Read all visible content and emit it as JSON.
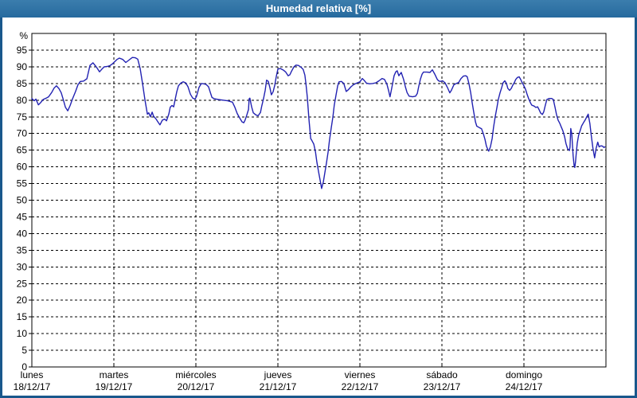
{
  "window": {
    "title": "Humedad relativa [%]"
  },
  "colors": {
    "frame": "#19588C",
    "title_bar_top": "#3B7DAD",
    "title_bar_bottom": "#266A9E",
    "title_text": "#FFFFFF",
    "plot_background": "#FFFFFF",
    "grid_line": "#000000",
    "axis_text": "#000000",
    "series_line": "#2222B2"
  },
  "chart_data": {
    "type": "line",
    "title": "Humedad relativa [%]",
    "ylabel": "%",
    "xlabel": "",
    "ylim": [
      0,
      100
    ],
    "y_ticks": [
      0,
      5,
      10,
      15,
      20,
      25,
      30,
      35,
      40,
      45,
      50,
      55,
      60,
      65,
      70,
      75,
      80,
      85,
      90,
      95
    ],
    "grid": true,
    "legend": "none",
    "x_axis": {
      "total_hours": 168,
      "tick_every_hours": 24,
      "days": [
        {
          "name": "lunes",
          "date": "18/12/17"
        },
        {
          "name": "martes",
          "date": "19/12/17"
        },
        {
          "name": "miércoles",
          "date": "20/12/17"
        },
        {
          "name": "jueves",
          "date": "21/12/17"
        },
        {
          "name": "viernes",
          "date": "22/12/17"
        },
        {
          "name": "sábado",
          "date": "23/12/17"
        },
        {
          "name": "domingo",
          "date": "24/12/17"
        }
      ]
    },
    "series": [
      {
        "name": "Humedad relativa",
        "unit": "%",
        "points": [
          [
            0,
            80.5
          ],
          [
            0.7,
            79.8
          ],
          [
            1.2,
            80.3
          ],
          [
            1.9,
            78.6
          ],
          [
            2.6,
            79.3
          ],
          [
            3.3,
            80.2
          ],
          [
            4.2,
            80.6
          ],
          [
            4.9,
            81
          ],
          [
            5.8,
            82.3
          ],
          [
            6.5,
            83.6
          ],
          [
            7.2,
            84.3
          ],
          [
            7.9,
            83.5
          ],
          [
            8.6,
            82.2
          ],
          [
            9.3,
            79.8
          ],
          [
            9.8,
            77.9
          ],
          [
            10.5,
            76.8
          ],
          [
            11.2,
            78.4
          ],
          [
            11.9,
            80.4
          ],
          [
            12.8,
            82.6
          ],
          [
            13.5,
            84.6
          ],
          [
            14.2,
            85.6
          ],
          [
            15.1,
            85.7
          ],
          [
            16.1,
            86.4
          ],
          [
            17,
            90.4
          ],
          [
            17.9,
            91.2
          ],
          [
            18.9,
            89.9
          ],
          [
            19.8,
            88.5
          ],
          [
            20.5,
            89.3
          ],
          [
            21.2,
            90
          ],
          [
            22.1,
            90.1
          ],
          [
            22.8,
            90.3
          ],
          [
            23.5,
            90.8
          ],
          [
            24.2,
            91.5
          ],
          [
            24.9,
            92.2
          ],
          [
            25.6,
            92.6
          ],
          [
            26.6,
            92.2
          ],
          [
            27.5,
            91.3
          ],
          [
            28.4,
            92
          ],
          [
            29.4,
            92.8
          ],
          [
            30.3,
            92.7
          ],
          [
            31,
            92.3
          ],
          [
            31.7,
            89.5
          ],
          [
            32.4,
            85
          ],
          [
            33.1,
            80
          ],
          [
            33.8,
            75.8
          ],
          [
            34.2,
            76.2
          ],
          [
            34.7,
            75
          ],
          [
            35.2,
            76.4
          ],
          [
            35.6,
            75.2
          ],
          [
            36.3,
            74.4
          ],
          [
            37,
            73.3
          ],
          [
            37.5,
            72.6
          ],
          [
            38.2,
            74
          ],
          [
            38.9,
            74.3
          ],
          [
            39.4,
            73.8
          ],
          [
            40.1,
            75.9
          ],
          [
            40.5,
            77.9
          ],
          [
            41,
            78.4
          ],
          [
            41.5,
            78
          ],
          [
            41.9,
            80
          ],
          [
            42.4,
            82.5
          ],
          [
            42.9,
            84.3
          ],
          [
            43.6,
            85.1
          ],
          [
            44.3,
            85.5
          ],
          [
            45,
            85.2
          ],
          [
            45.7,
            84
          ],
          [
            46.4,
            81.8
          ],
          [
            47.1,
            80.6
          ],
          [
            47.8,
            80.3
          ],
          [
            48.2,
            81.2
          ],
          [
            48.9,
            83.8
          ],
          [
            49.6,
            85
          ],
          [
            50.3,
            84.9
          ],
          [
            51,
            84.7
          ],
          [
            51.7,
            84
          ],
          [
            52.2,
            82.4
          ],
          [
            52.7,
            80.8
          ],
          [
            53.4,
            80.4
          ],
          [
            54.5,
            80.2
          ],
          [
            55.9,
            80
          ],
          [
            57.3,
            79.8
          ],
          [
            58.7,
            79.4
          ],
          [
            59.4,
            77.9
          ],
          [
            60.1,
            76
          ],
          [
            60.8,
            74.7
          ],
          [
            61.5,
            73.5
          ],
          [
            62,
            73.2
          ],
          [
            62.4,
            74
          ],
          [
            62.9,
            75.5
          ],
          [
            63.4,
            77.2
          ],
          [
            63.6,
            80.4
          ],
          [
            63.8,
            80.6
          ],
          [
            64.3,
            78
          ],
          [
            64.8,
            76.2
          ],
          [
            65.5,
            75.6
          ],
          [
            66.2,
            75.3
          ],
          [
            66.9,
            76.3
          ],
          [
            67.3,
            78.3
          ],
          [
            67.8,
            80.5
          ],
          [
            68.3,
            83
          ],
          [
            68.7,
            86
          ],
          [
            69.2,
            85.6
          ],
          [
            69.7,
            83.6
          ],
          [
            70.1,
            81.6
          ],
          [
            70.6,
            82.5
          ],
          [
            71.1,
            84.5
          ],
          [
            71.5,
            87
          ],
          [
            72,
            89.3
          ],
          [
            72.7,
            89.5
          ],
          [
            73.6,
            89
          ],
          [
            74.3,
            88.4
          ],
          [
            75,
            87.3
          ],
          [
            75.5,
            87.6
          ],
          [
            76,
            88.7
          ],
          [
            76.7,
            90
          ],
          [
            77.3,
            90.5
          ],
          [
            78,
            90.4
          ],
          [
            78.7,
            89.9
          ],
          [
            79.4,
            89.2
          ],
          [
            79.9,
            87.5
          ],
          [
            80.2,
            85
          ],
          [
            80.6,
            81
          ],
          [
            81.1,
            74
          ],
          [
            81.6,
            68.5
          ],
          [
            82,
            67.8
          ],
          [
            82.5,
            66.8
          ],
          [
            83,
            64.5
          ],
          [
            83.4,
            61.5
          ],
          [
            83.9,
            58.5
          ],
          [
            84.4,
            55.8
          ],
          [
            84.8,
            53.5
          ],
          [
            85.3,
            55.5
          ],
          [
            85.7,
            58
          ],
          [
            86.2,
            61
          ],
          [
            86.7,
            64.5
          ],
          [
            87.1,
            68
          ],
          [
            87.6,
            71.5
          ],
          [
            88.1,
            75
          ],
          [
            88.5,
            78.5
          ],
          [
            89,
            81.5
          ],
          [
            89.5,
            84.3
          ],
          [
            89.9,
            85.5
          ],
          [
            90.6,
            85.6
          ],
          [
            91.3,
            85
          ],
          [
            92,
            82.6
          ],
          [
            92.7,
            83.2
          ],
          [
            93.4,
            84
          ],
          [
            94.1,
            84.6
          ],
          [
            94.8,
            85
          ],
          [
            95.5,
            85.3
          ],
          [
            96,
            85.5
          ],
          [
            96.7,
            86.5
          ],
          [
            97.2,
            86
          ],
          [
            97.9,
            85.1
          ],
          [
            98.8,
            84.9
          ],
          [
            99.7,
            85
          ],
          [
            100.7,
            85.2
          ],
          [
            101.6,
            85.8
          ],
          [
            102.5,
            86.5
          ],
          [
            103.2,
            86.2
          ],
          [
            103.9,
            84.8
          ],
          [
            104.4,
            82.8
          ],
          [
            104.8,
            81
          ],
          [
            105.3,
            83.5
          ],
          [
            106,
            87.3
          ],
          [
            106.5,
            88.5
          ],
          [
            106.9,
            88.8
          ],
          [
            107.4,
            87.3
          ],
          [
            108.1,
            88.3
          ],
          [
            108.8,
            86.2
          ],
          [
            109.3,
            84
          ],
          [
            109.8,
            82.3
          ],
          [
            110.4,
            81.2
          ],
          [
            111.4,
            81
          ],
          [
            112.3,
            81.2
          ],
          [
            112.8,
            82
          ],
          [
            113.2,
            84
          ],
          [
            113.7,
            86.3
          ],
          [
            114.2,
            87.8
          ],
          [
            114.6,
            88.4
          ],
          [
            115.6,
            88.4
          ],
          [
            116.5,
            88.3
          ],
          [
            117.2,
            89.1
          ],
          [
            117.9,
            87.8
          ],
          [
            118.6,
            86.3
          ],
          [
            119,
            85.8
          ],
          [
            119.5,
            85.6
          ],
          [
            120.2,
            85.8
          ],
          [
            120.9,
            85.2
          ],
          [
            121.6,
            83.8
          ],
          [
            122.3,
            82.2
          ],
          [
            122.8,
            83
          ],
          [
            123.5,
            84.6
          ],
          [
            124.2,
            85
          ],
          [
            124.9,
            85.3
          ],
          [
            125.6,
            86.5
          ],
          [
            126.3,
            87.2
          ],
          [
            127,
            87.3
          ],
          [
            127.4,
            87
          ],
          [
            127.9,
            85
          ],
          [
            128.4,
            82.3
          ],
          [
            128.8,
            79.5
          ],
          [
            129.3,
            76.5
          ],
          [
            129.8,
            73.5
          ],
          [
            130.2,
            72.2
          ],
          [
            130.9,
            71.8
          ],
          [
            131.6,
            71.4
          ],
          [
            132.1,
            70
          ],
          [
            132.6,
            68.2
          ],
          [
            133,
            66.3
          ],
          [
            133.5,
            65
          ],
          [
            133.7,
            64.7
          ],
          [
            134.2,
            66
          ],
          [
            134.7,
            68.5
          ],
          [
            135.1,
            71.8
          ],
          [
            135.6,
            75
          ],
          [
            136.1,
            77.8
          ],
          [
            136.5,
            80.2
          ],
          [
            137,
            82.2
          ],
          [
            137.5,
            83.8
          ],
          [
            137.9,
            85.2
          ],
          [
            138.4,
            85.8
          ],
          [
            138.9,
            85
          ],
          [
            139.3,
            83.5
          ],
          [
            139.8,
            82.9
          ],
          [
            140.3,
            83.5
          ],
          [
            140.7,
            84.4
          ],
          [
            141.2,
            85.3
          ],
          [
            141.6,
            86.2
          ],
          [
            142.1,
            86.8
          ],
          [
            142.6,
            87
          ],
          [
            143,
            86.3
          ],
          [
            143.5,
            85.2
          ],
          [
            144,
            84.3
          ],
          [
            144.5,
            83.2
          ],
          [
            144.9,
            81.8
          ],
          [
            145.4,
            80.4
          ],
          [
            145.9,
            79.2
          ],
          [
            146.3,
            78.5
          ],
          [
            147,
            78.2
          ],
          [
            147.5,
            77.8
          ],
          [
            148,
            78
          ],
          [
            148.4,
            77.2
          ],
          [
            148.9,
            76.1
          ],
          [
            149.4,
            75.7
          ],
          [
            149.8,
            76.5
          ],
          [
            150.3,
            78.6
          ],
          [
            150.7,
            80.2
          ],
          [
            151.4,
            80.5
          ],
          [
            152.1,
            80.5
          ],
          [
            152.6,
            80.2
          ],
          [
            153.1,
            77.8
          ],
          [
            153.5,
            75.8
          ],
          [
            154,
            74
          ],
          [
            154.5,
            73
          ],
          [
            154.9,
            72
          ],
          [
            155.4,
            70.8
          ],
          [
            155.9,
            69
          ],
          [
            156.3,
            67
          ],
          [
            156.8,
            65.4
          ],
          [
            157.3,
            64.9
          ],
          [
            157.5,
            66
          ],
          [
            157.7,
            71.5
          ],
          [
            158,
            69.9
          ],
          [
            158.2,
            66.7
          ],
          [
            158.4,
            63.3
          ],
          [
            158.7,
            60.2
          ],
          [
            158.9,
            59.8
          ],
          [
            159.1,
            61.5
          ],
          [
            159.3,
            64
          ],
          [
            159.6,
            67
          ],
          [
            160,
            69.5
          ],
          [
            160.5,
            71
          ],
          [
            160.9,
            72.3
          ],
          [
            161.4,
            73.2
          ],
          [
            161.9,
            74
          ],
          [
            162.3,
            74.8
          ],
          [
            162.8,
            75.8
          ],
          [
            163.3,
            73
          ],
          [
            163.7,
            69.5
          ],
          [
            164.2,
            65.5
          ],
          [
            164.7,
            62.7
          ],
          [
            165.1,
            65.5
          ],
          [
            165.6,
            67.4
          ],
          [
            166,
            66
          ],
          [
            166.5,
            66.3
          ],
          [
            167,
            66.2
          ],
          [
            167.4,
            65.8
          ],
          [
            167.7,
            66
          ]
        ]
      }
    ]
  }
}
